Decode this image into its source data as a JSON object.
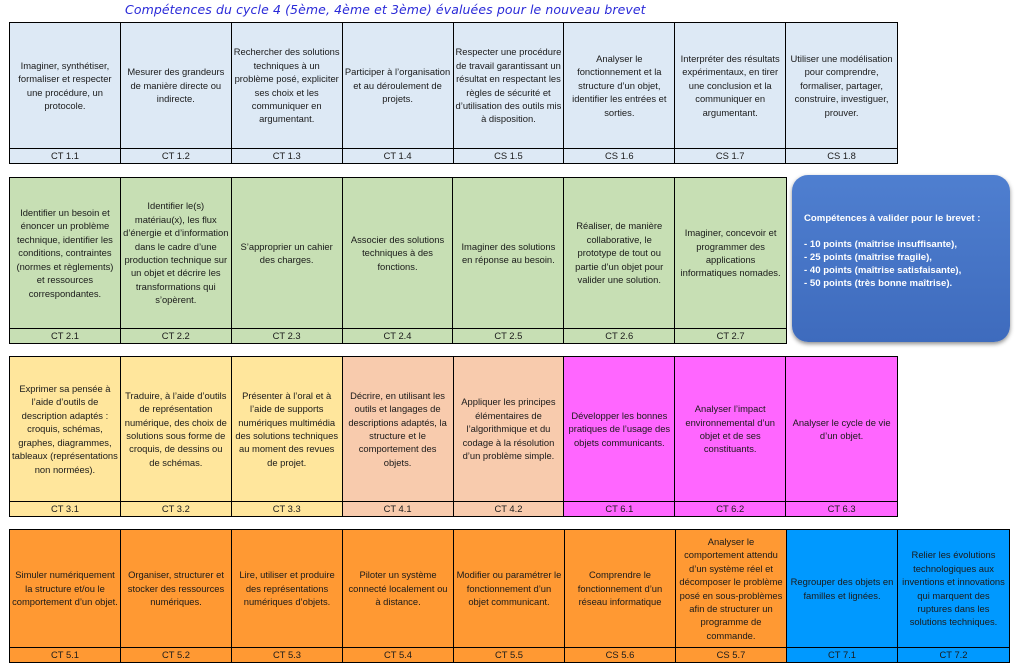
{
  "title": "Compétences du cycle 4 (5ème, 4ème et 3ème) évaluées pour le nouveau brevet",
  "colors": {
    "ct1": "#dde9f5",
    "ct2": "#c7dfb4",
    "ct3": "#ffe69c",
    "ct4": "#f8cbad",
    "ct6": "#ff66ff",
    "ct5": "#ff9933",
    "ct7": "#0099ff",
    "box": "#4472c4"
  },
  "rows": [
    [
      {
        "text": "Imaginer, synthétiser, formaliser et respecter une procédure, un protocole.",
        "code": "CT 1.1",
        "color": "ct1"
      },
      {
        "text": "Mesurer des grandeurs de manière directe ou indirecte.",
        "code": "CT 1.2",
        "color": "ct1"
      },
      {
        "text": "Rechercher des solutions techniques à un problème posé, expliciter ses choix et les communiquer en argumentant.",
        "code": "CT 1.3",
        "color": "ct1"
      },
      {
        "text": "Participer à l’organisation et au déroulement de projets.",
        "code": "CT 1.4",
        "color": "ct1"
      },
      {
        "text": "Respecter une procédure de travail garantissant un résultat en respectant les règles de sécurité et d’utilisation des outils mis à disposition.",
        "code": "CS 1.5",
        "color": "ct1"
      },
      {
        "text": "Analyser le fonctionnement et la structure d’un objet, identifier les entrées et sorties.",
        "code": "CS 1.6",
        "color": "ct1"
      },
      {
        "text": "Interpréter des résultats expérimentaux, en tirer une conclusion et la communiquer en argumentant.",
        "code": "CS 1.7",
        "color": "ct1"
      },
      {
        "text": "Utiliser une modélisation pour comprendre, formaliser, partager, construire, investiguer, prouver.",
        "code": "CS 1.8",
        "color": "ct1"
      }
    ],
    [
      {
        "text": "Identifier un besoin et énoncer un problème technique, identifier les conditions, contraintes (normes et règlements) et ressources correspondantes.",
        "code": "CT 2.1",
        "color": "ct2"
      },
      {
        "text": "Identifier le(s) matériau(x), les flux d’énergie et d’information dans le cadre d’une production technique sur un objet et décrire les transformations qui s’opèrent.",
        "code": "CT 2.2",
        "color": "ct2"
      },
      {
        "text": "S’approprier un cahier des charges.",
        "code": "CT 2.3",
        "color": "ct2"
      },
      {
        "text": "Associer des solutions techniques à des fonctions.",
        "code": "CT 2.4",
        "color": "ct2"
      },
      {
        "text": "Imaginer des solutions en réponse au besoin.",
        "code": "CT 2.5",
        "color": "ct2"
      },
      {
        "text": "Réaliser, de manière collaborative, le prototype de tout ou partie d’un objet pour valider une solution.",
        "code": "CT 2.6",
        "color": "ct2"
      },
      {
        "text": "Imaginer, concevoir et programmer des applications informatiques nomades.",
        "code": "CT 2.7",
        "color": "ct2"
      }
    ],
    [
      {
        "text": "Exprimer sa pensée à l’aide d’outils de description adaptés : croquis, schémas, graphes, diagrammes, tableaux (représentations non normées).",
        "code": "CT 3.1",
        "color": "ct3"
      },
      {
        "text": "Traduire, à l’aide d’outils de représentation numérique, des choix de solutions sous forme de croquis, de dessins ou de schémas.",
        "code": "CT 3.2",
        "color": "ct3"
      },
      {
        "text": "Présenter à l’oral et à l’aide de supports numériques multimédia des solutions techniques au moment des revues de projet.",
        "code": "CT 3.3",
        "color": "ct3"
      },
      {
        "text": "Décrire, en utilisant les outils et langages de descriptions adaptés, la structure et le comportement des objets.",
        "code": "CT 4.1",
        "color": "ct4"
      },
      {
        "text": "Appliquer les principes élémentaires de l’algorithmique et du codage à la résolution d’un problème simple.",
        "code": "CT 4.2",
        "color": "ct4"
      },
      {
        "text": "Développer les bonnes pratiques de l’usage des objets communicants.",
        "code": "CT 6.1",
        "color": "ct6"
      },
      {
        "text": "Analyser l’impact environnemental d’un objet et de ses constituants.",
        "code": "CT 6.2",
        "color": "ct6"
      },
      {
        "text": "Analyser le cycle de vie d’un objet.",
        "code": "CT 6.3",
        "color": "ct6"
      }
    ],
    [
      {
        "text": "Simuler numériquement la structure et/ou le comportement d’un objet.",
        "code": "CT 5.1",
        "color": "ct5"
      },
      {
        "text": "Organiser, structurer et stocker des ressources numériques.",
        "code": "CT 5.2",
        "color": "ct5"
      },
      {
        "text": "Lire, utiliser et produire des représentations numériques d’objets.",
        "code": "CT 5.3",
        "color": "ct5"
      },
      {
        "text": "Piloter un système connecté localement ou à distance.",
        "code": "CT 5.4",
        "color": "ct5"
      },
      {
        "text": "Modifier ou paramétrer le fonctionnement d’un objet communicant.",
        "code": "CT 5.5",
        "color": "ct5"
      },
      {
        "text": "Comprendre le fonctionnement d’un réseau informatique",
        "code": "CS 5.6",
        "color": "ct5"
      },
      {
        "text": "Analyser le comportement attendu d’un système réel et décomposer le problème posé en sous-problèmes afin de structurer un programme de commande.",
        "code": "CS 5.7",
        "color": "ct5"
      },
      {
        "text": "Regrouper des objets en familles et lignées.",
        "code": "CT 7.1",
        "color": "ct7"
      },
      {
        "text": "Relier les évolutions technologiques aux inventions et innovations qui marquent des ruptures dans les solutions techniques.",
        "code": "CT 7.2",
        "color": "ct7"
      }
    ]
  ],
  "brevet_box": {
    "heading": "Compétences à valider pour le brevet :",
    "levels": [
      "- 10 points (maîtrise insuffisante),",
      "- 25 points (maîtrise fragile),",
      "- 40 points (maîtrise satisfaisante),",
      "- 50 points (très bonne maîtrise)."
    ]
  }
}
